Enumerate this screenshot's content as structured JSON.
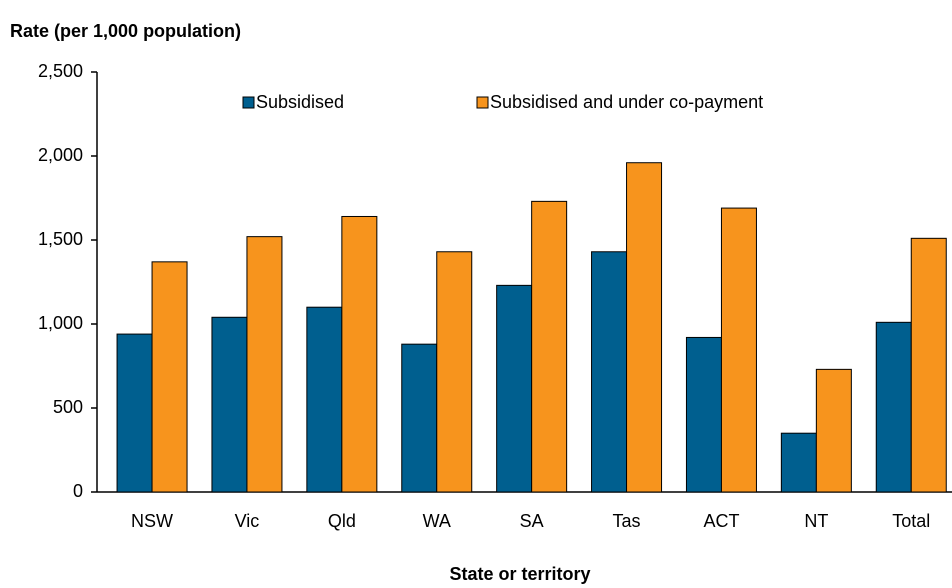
{
  "chart_data": {
    "type": "bar",
    "title": "Rate (per 1,000  population)",
    "x_label": "State or territory",
    "categories": [
      "NSW",
      "Vic",
      "Qld",
      "WA",
      "SA",
      "Tas",
      "ACT",
      "NT",
      "Total"
    ],
    "series": [
      {
        "name": "Subsidised",
        "color": "#005f8f",
        "values": [
          940,
          1040,
          1100,
          880,
          1230,
          1430,
          920,
          350,
          1010
        ]
      },
      {
        "name": "Subsidised and under co-payment",
        "color": "#f7941d",
        "values": [
          1370,
          1520,
          1640,
          1430,
          1730,
          1960,
          1690,
          730,
          1510
        ]
      }
    ],
    "ylim": [
      0,
      2500
    ],
    "yticks": [
      0,
      500,
      {
        "value": 1000,
        "label": "1,000"
      },
      {
        "value": 1500,
        "label": "1,500"
      },
      {
        "value": 2000,
        "label": "2,000"
      },
      {
        "value": 2500,
        "label": "2,500"
      }
    ],
    "legend": "top"
  }
}
